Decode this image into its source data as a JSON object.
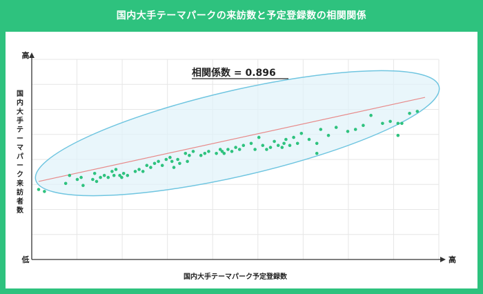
{
  "title": "国内大手テーマパークの来訪数と予定登録数の相関関係",
  "chart_data": {
    "type": "scatter",
    "title": "国内大手テーマパークの来訪数と予定登録数の相関関係",
    "xlabel": "国内大手テーマパーク予定登録数",
    "ylabel": "国内大手テーマパーク来訪者数",
    "x_low_label": "低",
    "x_high_label": "高",
    "y_high_label": "高",
    "annotation": "相関係数 = 0.896",
    "grid": true,
    "xlim": [
      0,
      1
    ],
    "ylim": [
      0,
      1
    ],
    "trendline": {
      "x": [
        0.0,
        1.0
      ],
      "y": [
        0.39,
        0.81
      ]
    },
    "points": [
      {
        "x": 0.0,
        "y": 0.35
      },
      {
        "x": 0.015,
        "y": 0.34
      },
      {
        "x": 0.07,
        "y": 0.38
      },
      {
        "x": 0.08,
        "y": 0.42
      },
      {
        "x": 0.1,
        "y": 0.4
      },
      {
        "x": 0.11,
        "y": 0.41
      },
      {
        "x": 0.115,
        "y": 0.37
      },
      {
        "x": 0.14,
        "y": 0.4
      },
      {
        "x": 0.145,
        "y": 0.43
      },
      {
        "x": 0.15,
        "y": 0.39
      },
      {
        "x": 0.16,
        "y": 0.41
      },
      {
        "x": 0.17,
        "y": 0.42
      },
      {
        "x": 0.18,
        "y": 0.41
      },
      {
        "x": 0.19,
        "y": 0.44
      },
      {
        "x": 0.195,
        "y": 0.42
      },
      {
        "x": 0.2,
        "y": 0.45
      },
      {
        "x": 0.21,
        "y": 0.42
      },
      {
        "x": 0.215,
        "y": 0.41
      },
      {
        "x": 0.22,
        "y": 0.43
      },
      {
        "x": 0.23,
        "y": 0.42
      },
      {
        "x": 0.25,
        "y": 0.44
      },
      {
        "x": 0.26,
        "y": 0.45
      },
      {
        "x": 0.27,
        "y": 0.44
      },
      {
        "x": 0.28,
        "y": 0.47
      },
      {
        "x": 0.29,
        "y": 0.46
      },
      {
        "x": 0.3,
        "y": 0.48
      },
      {
        "x": 0.31,
        "y": 0.49
      },
      {
        "x": 0.32,
        "y": 0.47
      },
      {
        "x": 0.33,
        "y": 0.5
      },
      {
        "x": 0.34,
        "y": 0.51
      },
      {
        "x": 0.345,
        "y": 0.49
      },
      {
        "x": 0.35,
        "y": 0.46
      },
      {
        "x": 0.36,
        "y": 0.5
      },
      {
        "x": 0.365,
        "y": 0.48
      },
      {
        "x": 0.38,
        "y": 0.53
      },
      {
        "x": 0.385,
        "y": 0.49
      },
      {
        "x": 0.39,
        "y": 0.52
      },
      {
        "x": 0.4,
        "y": 0.54
      },
      {
        "x": 0.42,
        "y": 0.52
      },
      {
        "x": 0.43,
        "y": 0.53
      },
      {
        "x": 0.44,
        "y": 0.54
      },
      {
        "x": 0.46,
        "y": 0.53
      },
      {
        "x": 0.47,
        "y": 0.55
      },
      {
        "x": 0.475,
        "y": 0.54
      },
      {
        "x": 0.48,
        "y": 0.53
      },
      {
        "x": 0.49,
        "y": 0.55
      },
      {
        "x": 0.5,
        "y": 0.54
      },
      {
        "x": 0.51,
        "y": 0.56
      },
      {
        "x": 0.52,
        "y": 0.55
      },
      {
        "x": 0.53,
        "y": 0.57
      },
      {
        "x": 0.55,
        "y": 0.58
      },
      {
        "x": 0.56,
        "y": 0.55
      },
      {
        "x": 0.57,
        "y": 0.61
      },
      {
        "x": 0.58,
        "y": 0.57
      },
      {
        "x": 0.59,
        "y": 0.55
      },
      {
        "x": 0.6,
        "y": 0.56
      },
      {
        "x": 0.61,
        "y": 0.59
      },
      {
        "x": 0.62,
        "y": 0.57
      },
      {
        "x": 0.63,
        "y": 0.56
      },
      {
        "x": 0.635,
        "y": 0.58
      },
      {
        "x": 0.64,
        "y": 0.6
      },
      {
        "x": 0.65,
        "y": 0.57
      },
      {
        "x": 0.66,
        "y": 0.61
      },
      {
        "x": 0.67,
        "y": 0.58
      },
      {
        "x": 0.68,
        "y": 0.63
      },
      {
        "x": 0.7,
        "y": 0.6
      },
      {
        "x": 0.72,
        "y": 0.58
      },
      {
        "x": 0.73,
        "y": 0.65
      },
      {
        "x": 0.75,
        "y": 0.62
      },
      {
        "x": 0.77,
        "y": 0.66
      },
      {
        "x": 0.8,
        "y": 0.64
      },
      {
        "x": 0.82,
        "y": 0.65
      },
      {
        "x": 0.84,
        "y": 0.67
      },
      {
        "x": 0.86,
        "y": 0.72
      },
      {
        "x": 0.89,
        "y": 0.68
      },
      {
        "x": 0.91,
        "y": 0.69
      },
      {
        "x": 0.93,
        "y": 0.68
      },
      {
        "x": 0.94,
        "y": 0.68
      },
      {
        "x": 0.96,
        "y": 0.73
      },
      {
        "x": 0.98,
        "y": 0.74
      },
      {
        "x": 0.72,
        "y": 0.53
      },
      {
        "x": 0.93,
        "y": 0.62
      }
    ],
    "colors": {
      "points": "#2ec27e",
      "trendline": "#e88a8a",
      "ellipse_stroke": "#6fc5e0",
      "ellipse_fill": "#dff2f9"
    }
  }
}
